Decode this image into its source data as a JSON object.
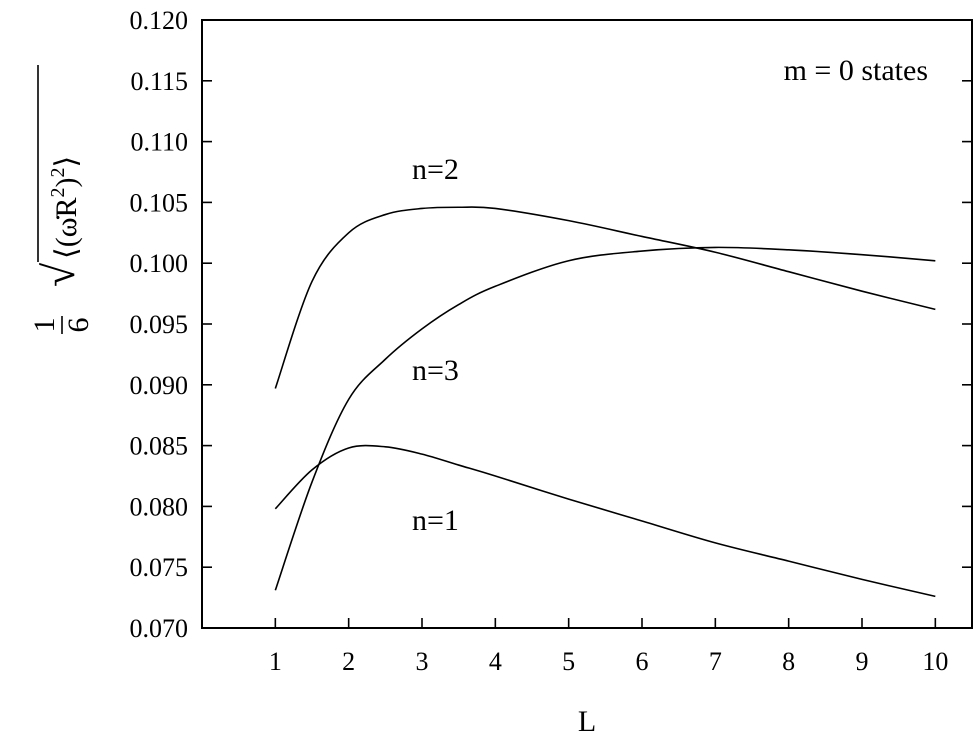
{
  "chart_data": {
    "type": "line",
    "xlabel": "L",
    "ylabel": "",
    "xlim": [
      0,
      10.5
    ],
    "ylim": [
      0.07,
      0.12
    ],
    "x_ticks": [
      "1",
      "2",
      "3",
      "4",
      "5",
      "6",
      "7",
      "8",
      "9",
      "10"
    ],
    "y_ticks": [
      "0.070",
      "0.075",
      "0.080",
      "0.085",
      "0.090",
      "0.095",
      "0.100",
      "0.105",
      "0.110",
      "0.115",
      "0.120"
    ],
    "grid": false,
    "legend": "none",
    "annotations": {
      "states": "m = 0 states",
      "n1": "n=1",
      "n2": "n=2",
      "n3": "n=3"
    },
    "series": [
      {
        "x": [
          1,
          1.5,
          2,
          2.5,
          3,
          3.5,
          4,
          5,
          6,
          7,
          8,
          9,
          10
        ],
        "y": [
          0.0798,
          0.083,
          0.0848,
          0.0849,
          0.0843,
          0.0834,
          0.0825,
          0.0806,
          0.0788,
          0.077,
          0.0755,
          0.074,
          0.0726
        ]
      },
      {
        "x": [
          1,
          1.5,
          2,
          2.5,
          3,
          3.5,
          4,
          5,
          6,
          7,
          8,
          9,
          10
        ],
        "y": [
          0.0897,
          0.0985,
          0.1025,
          0.104,
          0.1045,
          0.1046,
          0.1045,
          0.1035,
          0.1022,
          0.1009,
          0.0993,
          0.0977,
          0.0962
        ]
      },
      {
        "x": [
          1,
          1.5,
          2,
          2.5,
          3,
          3.5,
          4,
          5,
          6,
          7,
          8,
          9,
          10
        ],
        "y": [
          0.0731,
          0.082,
          0.0888,
          0.0921,
          0.0946,
          0.0966,
          0.0981,
          0.1002,
          0.101,
          0.1013,
          0.1011,
          0.1007,
          0.1002
        ]
      }
    ]
  }
}
